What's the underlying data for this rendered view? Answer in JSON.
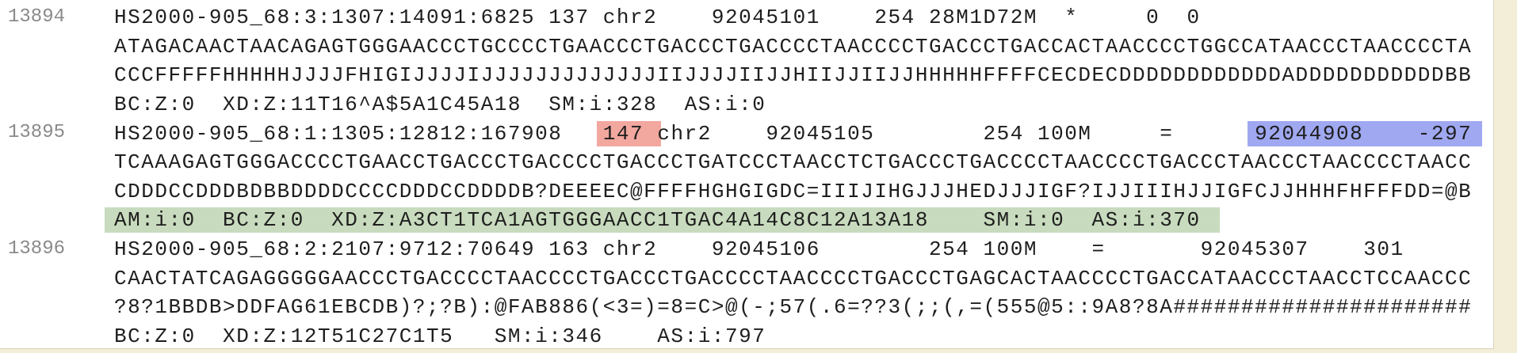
{
  "records": [
    {
      "line_number": 13894,
      "lines": [
        [
          {
            "text": "HS2000-905_68:3:1307:14091:6825 137 chr2    92045101    254 28M1D72M  *     0  0"
          }
        ],
        [
          {
            "text": "ATAGACAACTAACAGAGTGGGAACCCTGCCCCTGAACCCTGACCCTGACCCCTAACCCCTGACCCTGACCACTAACCCCTGGCCATAACCCTAACCCCTA"
          }
        ],
        [
          {
            "text": "CCCFFFFFHHHHHJJJJFHIGIJJJJIJJJJJJJJJJJJJIIJJJJIIJJHIIJJIIJJHHHHHFFFFCECDECDDDDDDDDDDDDADDDDDDDDDDDBB"
          }
        ],
        [
          {
            "text": "BC:Z:0  XD:Z:11T16^A$5A1C45A18  SM:i:328  AS:i:0"
          }
        ]
      ]
    },
    {
      "line_number": 13895,
      "lines": [
        [
          {
            "text": "HS2000-905_68:1:1305:12812:167908   "
          },
          {
            "text": "147",
            "highlight": "red"
          },
          {
            "text": " chr2    92045105        254 100M     =      "
          },
          {
            "text": "92044908    -297",
            "highlight": "blue"
          }
        ],
        [
          {
            "text": "TCAAAGAGTGGGACCCCTGAACCTGACCCTGACCCCTGACCCTGATCCCTAACCTCTGACCCTGACCCCTAACCCCTGACCCTAACCCTAACCCCTAACC"
          }
        ],
        [
          {
            "text": "CDDDCCDDDBDBBDDDDCCCCDDDCCDDDDB?DEEEEC@FFFFHGHGIGDC=IIIJIHGJJJHEDJJJIGF?IJJIIIHJJIGFCJJHHHFHFFFDD=@B"
          }
        ],
        [
          {
            "text": "AM:i:0  BC:Z:0  XD:Z:A3CT1TCA1AGTGGGAACC1TGAC4A14C8C12A13A18    SM:i:0  AS:i:370",
            "highlight": "green"
          }
        ]
      ]
    },
    {
      "line_number": 13896,
      "lines": [
        [
          {
            "text": "HS2000-905_68:2:2107:9712:70649 163 chr2    92045106        254 100M    =       92045307    301"
          }
        ],
        [
          {
            "text": "CAACTATCAGAGGGGGAACCCTGACCCCTAACCCCTGACCCTGACCCCTAACCCCTGACCCTGAGCACTAACCCCTGACCATAACCCTAACCTCCAACCC"
          }
        ],
        [
          {
            "text": "?8?1BBDB>DDFAG61EBCDB)?;?B):@FAB886(<3=)=8=C>@(-;57(.6=??3(;;(,=(555@5::9A8?8A######################"
          }
        ],
        [
          {
            "text": "BC:Z:0  XD:Z:12T51C27C1T5   SM:i:346    AS:i:797"
          }
        ]
      ]
    }
  ]
}
